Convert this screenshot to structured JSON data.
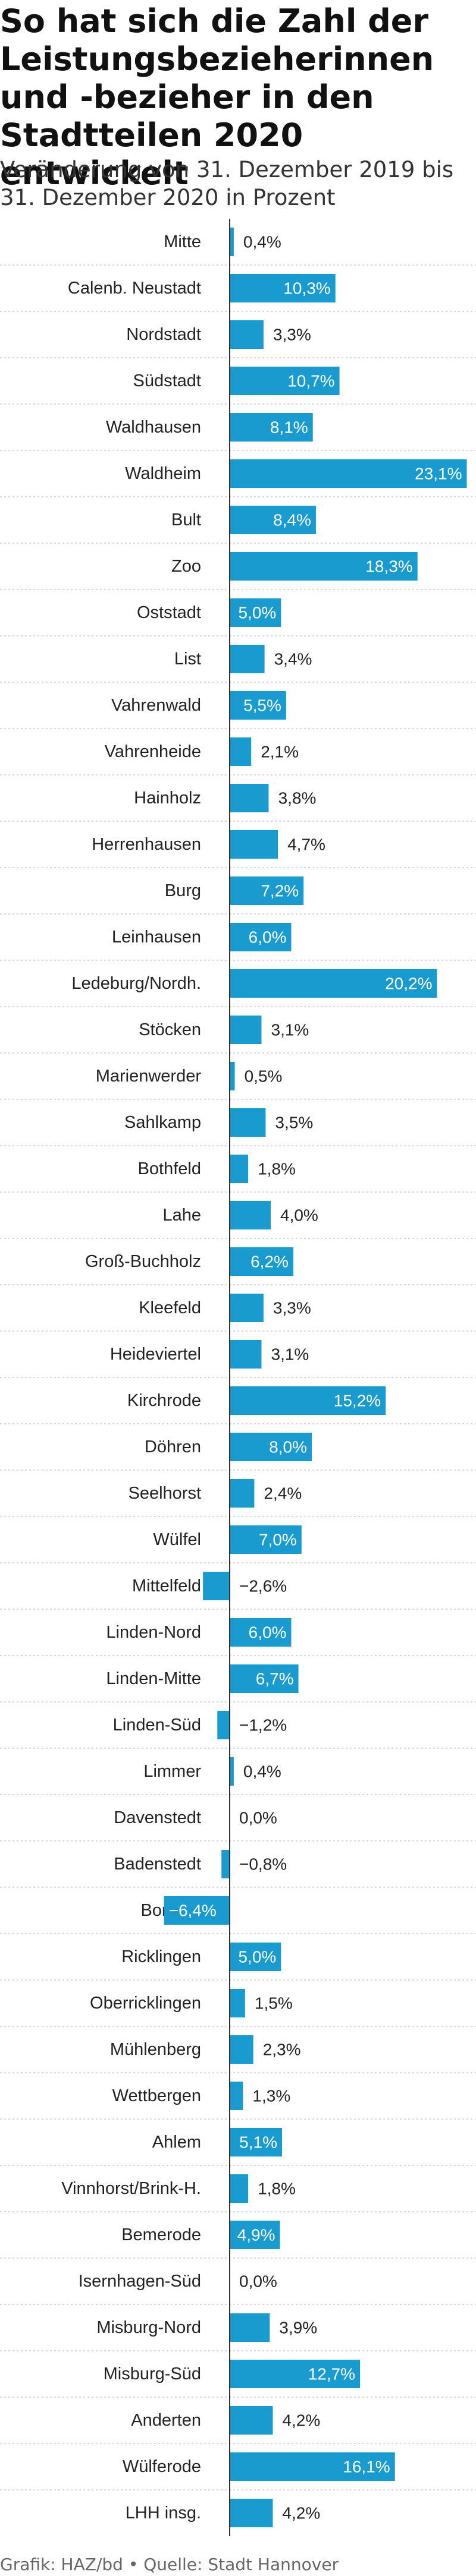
{
  "title": "So hat sich die Zahl der Leistungsbezieherinnen und -bezieher in den Stadtteilen 2020 entwickelt",
  "subtitle": "Veränderung von 31. Dezember 2019 bis 31. Dezember 2020 in Prozent",
  "source": "Grafik: HAZ/bd • Quelle: Stadt Hannover",
  "colors": {
    "bar": "#1a9bd0",
    "axis": "#333333",
    "gridline": "#cccccc",
    "label": "#222222",
    "label_inside": "#ffffff"
  },
  "chart_data": {
    "type": "bar",
    "orientation": "horizontal",
    "title": "So hat sich die Zahl der Leistungsbezieherinnen und -bezieher in den Stadtteilen 2020 entwickelt",
    "xlabel": "",
    "ylabel": "",
    "xlim": [
      -9.5,
      24.0
    ],
    "grid": "horizontal-dashed",
    "legend": "none",
    "categories": [
      "Mitte",
      "Calenb. Neustadt",
      "Nordstadt",
      "Südstadt",
      "Waldhausen",
      "Waldheim",
      "Bult",
      "Zoo",
      "Oststadt",
      "List",
      "Vahrenwald",
      "Vahrenheide",
      "Hainholz",
      "Herrenhausen",
      "Burg",
      "Leinhausen",
      "Ledeburg/Nordh.",
      "Stöcken",
      "Marienwerder",
      "Sahlkamp",
      "Bothfeld",
      "Lahe",
      "Groß-Buchholz",
      "Kleefeld",
      "Heideviertel",
      "Kirchrode",
      "Döhren",
      "Seelhorst",
      "Wülfel",
      "Mittelfeld",
      "Linden-Nord",
      "Linden-Mitte",
      "Linden-Süd",
      "Limmer",
      "Davenstedt",
      "Badenstedt",
      "Bornum",
      "Ricklingen",
      "Oberricklingen",
      "Mühlenberg",
      "Wettbergen",
      "Ahlem",
      "Vinnhorst/Brink-H.",
      "Bemerode",
      "Isernhagen-Süd",
      "Misburg-Nord",
      "Misburg-Süd",
      "Anderten",
      "Wülferode",
      "LHH insg."
    ],
    "values": [
      0.4,
      10.3,
      3.3,
      10.7,
      8.1,
      23.1,
      8.4,
      18.3,
      5.0,
      3.4,
      5.5,
      2.1,
      3.8,
      4.7,
      7.2,
      6.0,
      20.2,
      3.1,
      0.5,
      3.5,
      1.8,
      4.0,
      6.2,
      3.3,
      3.1,
      15.2,
      8.0,
      2.4,
      7.0,
      -2.6,
      6.0,
      6.7,
      -1.2,
      0.4,
      0.0,
      -0.8,
      -6.4,
      5.0,
      1.5,
      2.3,
      1.3,
      5.1,
      1.8,
      4.9,
      0.0,
      3.9,
      12.7,
      4.2,
      16.1,
      4.2
    ],
    "value_labels": [
      "0,4%",
      "10,3%",
      "3,3%",
      "10,7%",
      "8,1%",
      "23,1%",
      "8,4%",
      "18,3%",
      "5,0%",
      "3,4%",
      "5,5%",
      "2,1%",
      "3,8%",
      "4,7%",
      "7,2%",
      "6,0%",
      "20,2%",
      "3,1%",
      "0,5%",
      "3,5%",
      "1,8%",
      "4,0%",
      "6,2%",
      "3,3%",
      "3,1%",
      "15,2%",
      "8,0%",
      "2,4%",
      "7,0%",
      "−2,6%",
      "6,0%",
      "6,7%",
      "−1,2%",
      "0,4%",
      "0,0%",
      "−0,8%",
      "−6,4%",
      "5,0%",
      "1,5%",
      "2,3%",
      "1,3%",
      "5,1%",
      "1,8%",
      "4,9%",
      "0,0%",
      "3,9%",
      "12,7%",
      "4,2%",
      "16,1%",
      "4,2%"
    ]
  }
}
